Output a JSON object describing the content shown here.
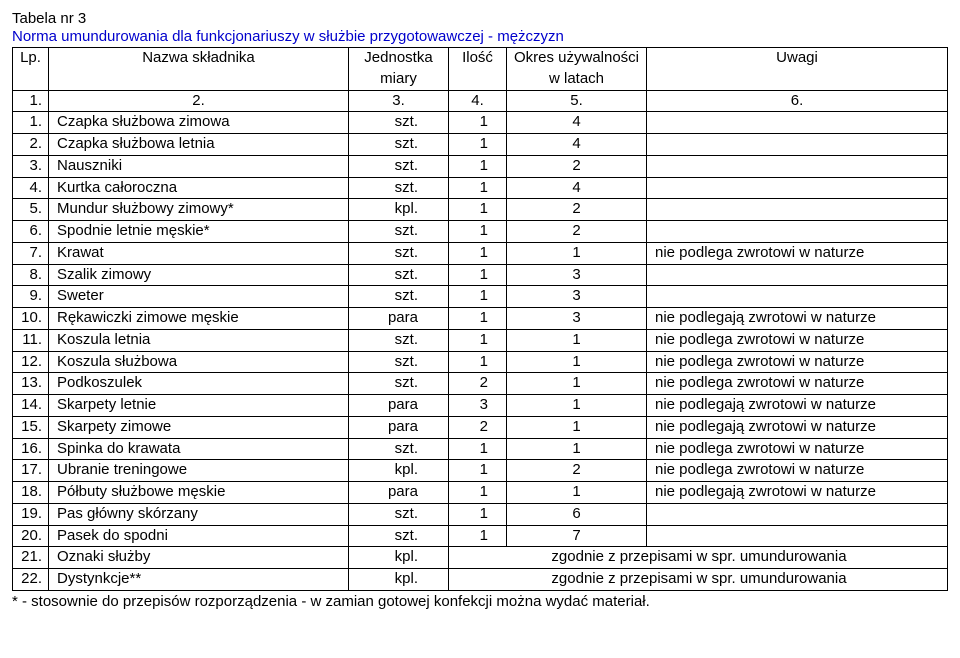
{
  "title": "Tabela nr 3",
  "subtitle": "Norma umundurowania dla funkcjonariuszy w służbie przygotowawczej - mężczyzn",
  "headers": {
    "lp": "Lp.",
    "name": "Nazwa składnika",
    "unit_l1": "Jednostka",
    "unit_l2": "miary",
    "qty": "Ilość",
    "per_l1": "Okres używalności",
    "per_l2": "w latach",
    "note": "Uwagi"
  },
  "num_row": [
    "1.",
    "2.",
    "3.",
    "4.",
    "5.",
    "6."
  ],
  "rows": [
    {
      "lp": "1.",
      "name": "Czapka służbowa zimowa",
      "unit": "szt.",
      "qty": "1",
      "per": "4",
      "note": ""
    },
    {
      "lp": "2.",
      "name": "Czapka służbowa letnia",
      "unit": "szt.",
      "qty": "1",
      "per": "4",
      "note": ""
    },
    {
      "lp": "3.",
      "name": "Nauszniki",
      "unit": "szt.",
      "qty": "1",
      "per": "2",
      "note": ""
    },
    {
      "lp": "4.",
      "name": "Kurtka całoroczna",
      "unit": "szt.",
      "qty": "1",
      "per": "4",
      "note": ""
    },
    {
      "lp": "5.",
      "name": "Mundur służbowy zimowy*",
      "unit": "kpl.",
      "qty": "1",
      "per": "2",
      "note": ""
    },
    {
      "lp": "6.",
      "name": "Spodnie letnie męskie*",
      "unit": "szt.",
      "qty": "1",
      "per": "2",
      "note": ""
    },
    {
      "lp": "7.",
      "name": "Krawat",
      "unit": "szt.",
      "qty": "1",
      "per": "1",
      "note": "nie podlega zwrotowi w naturze"
    },
    {
      "lp": "8.",
      "name": "Szalik zimowy",
      "unit": "szt.",
      "qty": "1",
      "per": "3",
      "note": ""
    },
    {
      "lp": "9.",
      "name": "Sweter",
      "unit": "szt.",
      "qty": "1",
      "per": "3",
      "note": ""
    },
    {
      "lp": "10.",
      "name": "Rękawiczki zimowe męskie",
      "unit": "para",
      "qty": "1",
      "per": "3",
      "note": "nie podlegają zwrotowi w naturze"
    },
    {
      "lp": "11.",
      "name": "Koszula letnia",
      "unit": "szt.",
      "qty": "1",
      "per": "1",
      "note": "nie podlega zwrotowi w naturze"
    },
    {
      "lp": "12.",
      "name": "Koszula służbowa",
      "unit": "szt.",
      "qty": "1",
      "per": "1",
      "note": "nie podlega zwrotowi w naturze"
    },
    {
      "lp": "13.",
      "name": "Podkoszulek",
      "unit": "szt.",
      "qty": "2",
      "per": "1",
      "note": "nie podlega zwrotowi w naturze"
    },
    {
      "lp": "14.",
      "name": "Skarpety letnie",
      "unit": "para",
      "qty": "3",
      "per": "1",
      "note": "nie podlegają zwrotowi w naturze"
    },
    {
      "lp": "15.",
      "name": "Skarpety zimowe",
      "unit": "para",
      "qty": "2",
      "per": "1",
      "note": "nie podlegają zwrotowi w naturze"
    },
    {
      "lp": "16.",
      "name": "Spinka do krawata",
      "unit": "szt.",
      "qty": "1",
      "per": "1",
      "note": "nie podlega zwrotowi w naturze"
    },
    {
      "lp": "17.",
      "name": "Ubranie treningowe",
      "unit": "kpl.",
      "qty": "1",
      "per": "2",
      "note": "nie podlega zwrotowi w naturze"
    },
    {
      "lp": "18.",
      "name": "Półbuty służbowe męskie",
      "unit": "para",
      "qty": "1",
      "per": "1",
      "note": "nie podlegają zwrotowi w naturze"
    },
    {
      "lp": "19.",
      "name": "Pas główny skórzany",
      "unit": "szt.",
      "qty": "1",
      "per": "6",
      "note": ""
    },
    {
      "lp": "20.",
      "name": "Pasek do spodni",
      "unit": "szt.",
      "qty": "1",
      "per": "7",
      "note": ""
    },
    {
      "lp": "21.",
      "name": "Oznaki służby",
      "unit": "kpl.",
      "qty": "",
      "per": "",
      "note": "zgodnie z przepisami w spr. umundurowania",
      "span": true
    },
    {
      "lp": "22.",
      "name": "Dystynkcje**",
      "unit": "kpl.",
      "qty": "",
      "per": "",
      "note": "zgodnie z przepisami w spr. umundurowania",
      "span": true
    }
  ],
  "footnote": "*  - stosownie do przepisów rozporządzenia - w zamian gotowej konfekcji można wydać materiał.",
  "style": {
    "subtitle_color": "#0000cc",
    "border_color": "#000000",
    "font_size_pt": 11
  }
}
